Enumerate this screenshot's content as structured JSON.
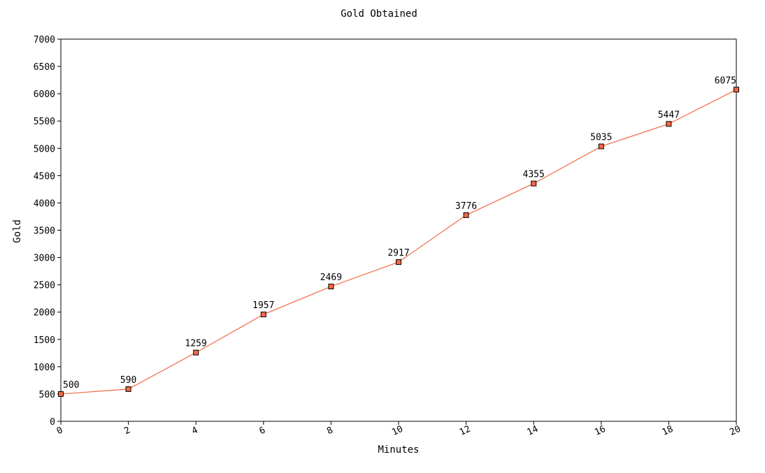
{
  "chart_data": {
    "type": "line",
    "title": "Gold Obtained",
    "xlabel": "Minutes",
    "ylabel": "Gold",
    "x": [
      0,
      2,
      4,
      6,
      8,
      10,
      12,
      14,
      16,
      18,
      20
    ],
    "series": [
      {
        "values": [
          500,
          590,
          1259,
          1957,
          2469,
          2917,
          3776,
          4355,
          5035,
          5447,
          6075
        ]
      }
    ],
    "xlim": [
      0,
      20
    ],
    "ylim": [
      0,
      7000
    ],
    "x_ticks": [
      0,
      2,
      4,
      6,
      8,
      10,
      12,
      14,
      16,
      18,
      20
    ],
    "y_ticks": [
      0,
      500,
      1000,
      1500,
      2000,
      2500,
      3000,
      3500,
      4000,
      4500,
      5000,
      5500,
      6000,
      6500,
      7000
    ],
    "grid": false,
    "line_color": "#f26a45",
    "marker_color": "#f26a45",
    "marker_edge_color": "#000000",
    "marker": "square",
    "show_data_labels": true
  }
}
